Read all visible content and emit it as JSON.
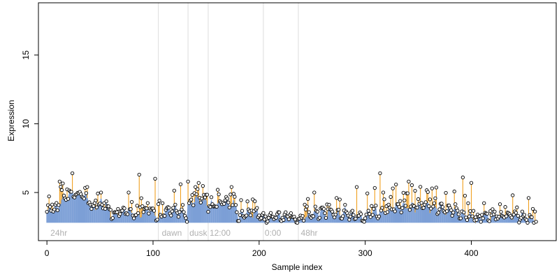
{
  "chart_data": {
    "type": "scatter",
    "xlabel": "Sample index",
    "ylabel": "Expression",
    "xlim": [
      -8,
      480
    ],
    "ylim": [
      1.5,
      18.8
    ],
    "x_ticks": [
      0,
      100,
      200,
      300,
      400
    ],
    "y_ticks": [
      5,
      10,
      15
    ],
    "grid": false,
    "colors": {
      "point_stroke": "#000000",
      "point_fill": "#ffffff",
      "baseline_line": "#7c9fd6",
      "residual_line": "#f0a020",
      "region_line": "#dddddd",
      "region_label": "#b0b0b0",
      "axis": "#000000"
    },
    "regions": [
      {
        "label": "24hr",
        "x": 2
      },
      {
        "label": "dawn",
        "x": 107
      },
      {
        "label": "dusk",
        "x": 133
      },
      {
        "label": "12:00",
        "x": 152
      },
      {
        "label": "0:00",
        "x": 204
      },
      {
        "label": "48hr",
        "x": 238
      }
    ],
    "region_lines": [
      105,
      133,
      152,
      204,
      237
    ],
    "segments": [
      {
        "x0": 0,
        "x1": 12,
        "base": 3.6,
        "amp": 0.9
      },
      {
        "x0": 12,
        "x1": 42,
        "base": 4.4,
        "amp": 1.4
      },
      {
        "x0": 42,
        "x1": 60,
        "base": 3.8,
        "amp": 1.1
      },
      {
        "x0": 60,
        "x1": 85,
        "base": 3.3,
        "amp": 0.9
      },
      {
        "x0": 85,
        "x1": 105,
        "base": 3.2,
        "amp": 1.6
      },
      {
        "x0": 105,
        "x1": 133,
        "base": 3.1,
        "amp": 1.8
      },
      {
        "x0": 133,
        "x1": 152,
        "base": 4.1,
        "amp": 1.4
      },
      {
        "x0": 152,
        "x1": 180,
        "base": 3.9,
        "amp": 1.3
      },
      {
        "x0": 180,
        "x1": 205,
        "base": 3.2,
        "amp": 0.9
      },
      {
        "x0": 205,
        "x1": 237,
        "base": 3.0,
        "amp": 0.6
      },
      {
        "x0": 237,
        "x1": 300,
        "base": 3.1,
        "amp": 1.3
      },
      {
        "x0": 300,
        "x1": 400,
        "base": 3.3,
        "amp": 1.9
      },
      {
        "x0": 400,
        "x1": 462,
        "base": 3.0,
        "amp": 1.0
      }
    ],
    "peaks": [
      {
        "x": 12,
        "y": 5.8
      },
      {
        "x": 24,
        "y": 6.4
      },
      {
        "x": 38,
        "y": 5.4
      },
      {
        "x": 51,
        "y": 5.0
      },
      {
        "x": 77,
        "y": 5.0
      },
      {
        "x": 87,
        "y": 6.3
      },
      {
        "x": 102,
        "y": 6.0
      },
      {
        "x": 126,
        "y": 5.6
      },
      {
        "x": 133,
        "y": 5.8
      },
      {
        "x": 143,
        "y": 5.7
      },
      {
        "x": 161,
        "y": 5.2
      },
      {
        "x": 174,
        "y": 5.4
      },
      {
        "x": 194,
        "y": 4.5
      },
      {
        "x": 252,
        "y": 5.0
      },
      {
        "x": 292,
        "y": 5.4
      },
      {
        "x": 314,
        "y": 6.4
      },
      {
        "x": 326,
        "y": 5.3
      },
      {
        "x": 341,
        "y": 5.8
      },
      {
        "x": 363,
        "y": 5.3
      },
      {
        "x": 392,
        "y": 6.1
      },
      {
        "x": 400,
        "y": 5.7
      },
      {
        "x": 439,
        "y": 4.8
      },
      {
        "x": 454,
        "y": 4.6
      }
    ]
  }
}
